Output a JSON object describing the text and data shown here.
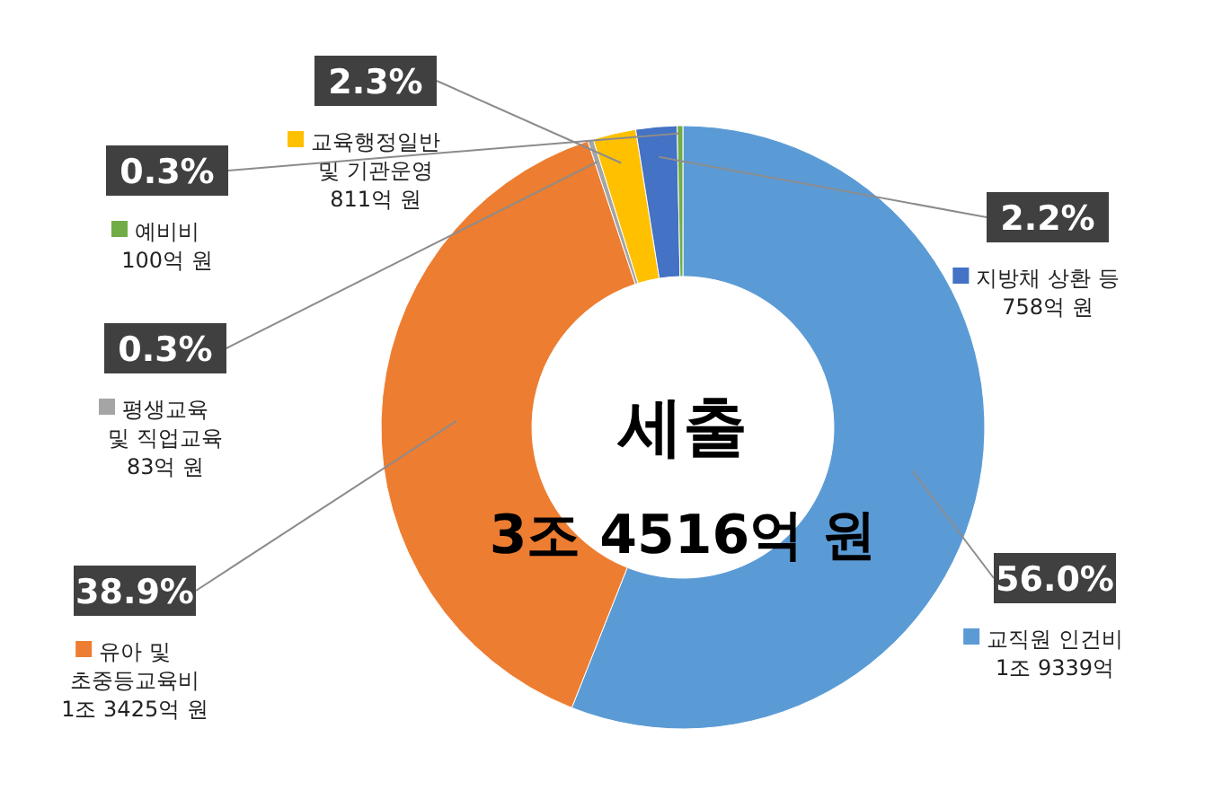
{
  "chart_data": {
    "type": "donut",
    "categories": [
      "교직원 인건비\n1조 9339억",
      "유아 및\n초중등교육비\n1조 3425억 원",
      "평생교육\n및 직업교육\n83억 원",
      "교육행정일반\n및 기관운영\n811억 원",
      "지방채 상환 등\n758억 원",
      "예비비\n100억 원"
    ],
    "values": [
      56.0,
      38.9,
      0.3,
      2.3,
      2.2,
      0.3
    ],
    "value_labels": [
      "56.0%",
      "38.9%",
      "0.3%",
      "2.3%",
      "2.2%",
      "0.3%"
    ],
    "colors": [
      "#5b9bd5",
      "#ed7d31",
      "#a5a5a5",
      "#ffc000",
      "#4472c4",
      "#70ad47"
    ],
    "annotations": [
      "세출",
      "3조 4516억 원"
    ],
    "legend": "left"
  }
}
